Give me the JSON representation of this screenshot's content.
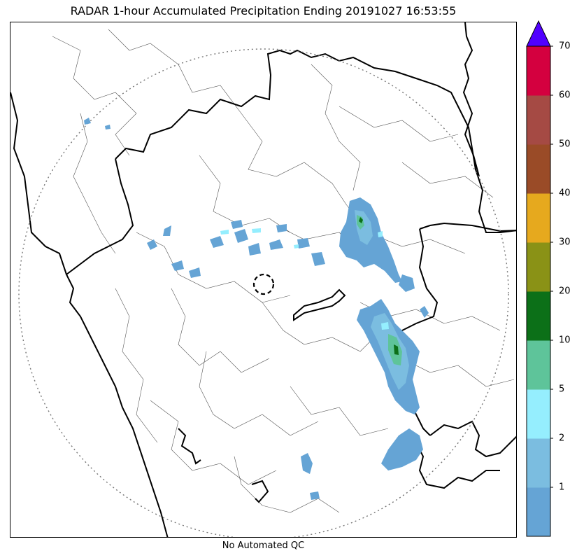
{
  "title": "RADAR 1-hour Accumulated Precipitation Ending 20191027 16:53:55",
  "footer": "No Automated QC",
  "colorbar": {
    "levels": [
      "",
      "1",
      "2",
      "5",
      "10",
      "20",
      "30",
      "40",
      "50",
      "60",
      "70"
    ],
    "colors": [
      "#65a4d5",
      "#7bbde0",
      "#95eefe",
      "#5ec49a",
      "#0c7018",
      "#8a9216",
      "#e6a91e",
      "#9a4b27",
      "#a54a44",
      "#d4003f"
    ],
    "extend_color": "#5100ff"
  },
  "map": {
    "range_ring": "dotted",
    "radar_marker": "dashed-circle",
    "precip_areas": [
      {
        "name": "main-band-north",
        "level": 1
      },
      {
        "name": "main-band-south",
        "level": 1
      },
      {
        "name": "scattered-west",
        "level": 1
      },
      {
        "name": "scattered-south",
        "level": 1
      }
    ]
  }
}
